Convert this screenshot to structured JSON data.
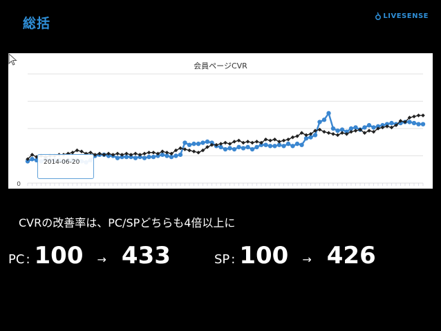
{
  "slide": {
    "title": "総括",
    "logo_text": "LIVESENSE",
    "accent_color": "#2f8fd8"
  },
  "chart_data": {
    "type": "line",
    "title": "会員ページCVR",
    "y_tick_label": "0",
    "tooltip_date": "2014-06-20",
    "x": [
      1,
      2,
      3,
      4,
      5,
      6,
      7,
      8,
      9,
      10,
      11,
      12,
      13,
      14,
      15,
      16,
      17,
      18,
      19,
      20,
      21,
      22,
      23,
      24,
      25,
      26,
      27,
      28,
      29,
      30,
      31,
      32,
      33,
      34,
      35,
      36,
      37,
      38,
      39,
      40,
      41,
      42,
      43,
      44,
      45,
      46,
      47,
      48,
      49,
      50,
      51,
      52,
      53,
      54,
      55,
      56,
      57,
      58,
      59,
      60,
      61,
      62,
      63,
      64,
      65,
      66,
      67,
      68,
      69,
      70,
      71,
      72,
      73,
      74,
      75,
      76,
      77,
      78,
      79,
      80,
      81,
      82,
      83,
      84,
      85,
      86,
      87,
      88,
      89
    ],
    "ylim": [
      0,
      100
    ],
    "grid": true,
    "series": [
      {
        "color": "#3a86d0",
        "marker": "circle",
        "values": [
          20,
          22,
          21,
          20,
          22,
          21,
          21,
          21,
          20,
          21,
          21,
          21,
          20,
          19,
          21,
          25,
          26,
          26,
          25,
          25,
          23,
          24,
          24,
          24,
          23,
          24,
          23,
          24,
          24,
          25,
          26,
          25,
          24,
          25,
          26,
          37,
          35,
          36,
          36,
          37,
          38,
          37,
          34,
          33,
          31,
          32,
          31,
          33,
          32,
          33,
          31,
          33,
          35,
          35,
          34,
          34,
          35,
          34,
          36,
          34,
          36,
          35,
          41,
          42,
          44,
          56,
          58,
          64,
          50,
          48,
          49,
          47,
          50,
          51,
          49,
          51,
          53,
          51,
          52,
          53,
          54,
          55,
          54,
          55,
          56,
          56,
          55,
          54,
          54
        ]
      },
      {
        "color": "#222222",
        "marker": "diamond",
        "values": [
          22,
          26,
          24,
          25,
          24,
          25,
          25,
          26,
          26,
          27,
          28,
          30,
          29,
          27,
          28,
          26,
          27,
          26,
          27,
          26,
          27,
          26,
          27,
          26,
          27,
          26,
          27,
          28,
          28,
          27,
          29,
          28,
          27,
          30,
          32,
          31,
          30,
          29,
          28,
          30,
          33,
          35,
          35,
          36,
          37,
          36,
          38,
          39,
          37,
          38,
          37,
          38,
          37,
          40,
          39,
          40,
          38,
          39,
          40,
          42,
          43,
          46,
          44,
          45,
          48,
          49,
          47,
          46,
          45,
          44,
          46,
          45,
          47,
          48,
          49,
          46,
          48,
          47,
          50,
          51,
          52,
          51,
          53,
          57,
          56,
          60,
          61,
          62,
          62
        ]
      }
    ]
  },
  "summary": {
    "text": "CVRの改善率は、PC/SPどちらも4倍以上に"
  },
  "stats": {
    "pc": {
      "label": "PC",
      "colon": ":",
      "before": "100",
      "arrow": "→",
      "after": "433"
    },
    "sp": {
      "label": "SP",
      "colon": ":",
      "before": "100",
      "arrow": "→",
      "after": "426"
    }
  }
}
